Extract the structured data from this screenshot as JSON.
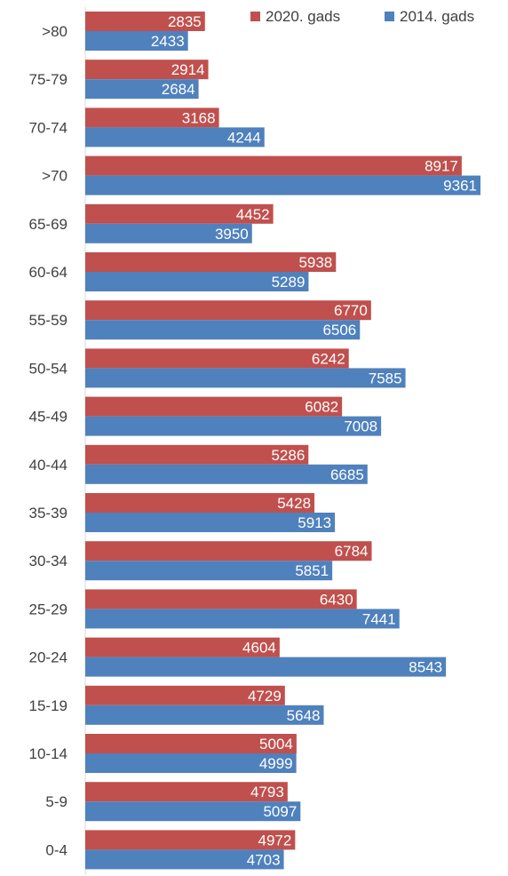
{
  "chart_data": {
    "type": "bar",
    "orientation": "horizontal",
    "categories": [
      ">80",
      "75-79",
      "70-74",
      ">70",
      "65-69",
      "60-64",
      "55-59",
      "50-54",
      "45-49",
      "40-44",
      "35-39",
      "30-34",
      "25-29",
      "20-24",
      "15-19",
      "10-14",
      "5-9",
      "0-4"
    ],
    "series": [
      {
        "name": "2020. gads",
        "color": "#c0504d",
        "values": [
          2835,
          2914,
          3168,
          8917,
          4452,
          5938,
          6770,
          6242,
          6082,
          5286,
          5428,
          6784,
          6430,
          4604,
          4729,
          5004,
          4793,
          4972
        ]
      },
      {
        "name": "2014. gads",
        "color": "#4f81bd",
        "values": [
          2433,
          2684,
          4244,
          9361,
          3950,
          5289,
          6506,
          7585,
          7008,
          6685,
          5913,
          5851,
          7441,
          8543,
          5648,
          4999,
          5097,
          4703
        ]
      }
    ],
    "xlim": [
      0,
      9361
    ],
    "legend": "top-right",
    "grid": false,
    "data_labels": "inside-end"
  }
}
